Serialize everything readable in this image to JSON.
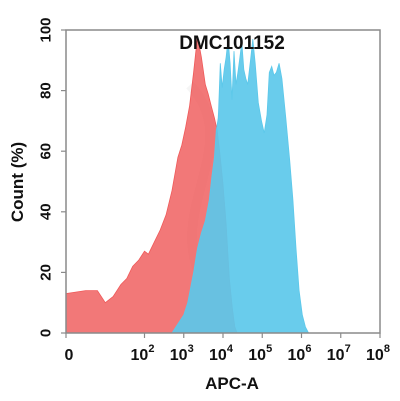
{
  "chart_data": {
    "type": "area",
    "title": "DMC101152",
    "xlabel": "APC-A",
    "ylabel": "Count  (%)",
    "x_scale": "log",
    "xlim_decades": [
      0,
      8
    ],
    "ylim": [
      0,
      100
    ],
    "x_tick_labels": [
      {
        "base": "0",
        "exp": ""
      },
      {
        "base": "10",
        "exp": "2"
      },
      {
        "base": "10",
        "exp": "3"
      },
      {
        "base": "10",
        "exp": "4"
      },
      {
        "base": "10",
        "exp": "5"
      },
      {
        "base": "10",
        "exp": "6"
      },
      {
        "base": "10",
        "exp": "7"
      },
      {
        "base": "10",
        "exp": "8"
      }
    ],
    "x_tick_decades": [
      0,
      2,
      3,
      4,
      5,
      6,
      7,
      8
    ],
    "y_ticks": [
      0,
      20,
      40,
      60,
      80,
      100
    ],
    "grid": false,
    "legend": "none",
    "series": [
      {
        "color": "#ef5a5a",
        "opacity": 0.82,
        "points": [
          [
            0.0,
            13
          ],
          [
            0.5,
            14
          ],
          [
            0.8,
            14
          ],
          [
            1.0,
            10
          ],
          [
            1.2,
            12
          ],
          [
            1.4,
            16
          ],
          [
            1.55,
            18
          ],
          [
            1.7,
            22
          ],
          [
            1.85,
            24
          ],
          [
            2.0,
            27
          ],
          [
            2.1,
            26
          ],
          [
            2.25,
            30
          ],
          [
            2.4,
            34
          ],
          [
            2.55,
            39
          ],
          [
            2.7,
            47
          ],
          [
            2.85,
            58
          ],
          [
            2.95,
            62
          ],
          [
            3.05,
            68
          ],
          [
            3.15,
            75
          ],
          [
            3.25,
            86
          ],
          [
            3.35,
            98
          ],
          [
            3.45,
            91
          ],
          [
            3.55,
            82
          ],
          [
            3.62,
            79
          ],
          [
            3.7,
            75
          ],
          [
            3.78,
            71
          ],
          [
            3.85,
            67
          ],
          [
            3.92,
            59
          ],
          [
            4.0,
            49
          ],
          [
            4.08,
            36
          ],
          [
            4.16,
            18
          ],
          [
            4.24,
            8
          ],
          [
            4.3,
            2
          ],
          [
            4.36,
            0
          ]
        ]
      },
      {
        "color": "#5cc8ea",
        "opacity": 0.92,
        "points": [
          [
            2.7,
            0
          ],
          [
            2.85,
            3
          ],
          [
            3.0,
            6
          ],
          [
            3.1,
            10
          ],
          [
            3.25,
            20
          ],
          [
            3.35,
            28
          ],
          [
            3.45,
            33
          ],
          [
            3.55,
            37
          ],
          [
            3.65,
            44
          ],
          [
            3.72,
            52
          ],
          [
            3.78,
            58
          ],
          [
            3.83,
            67
          ],
          [
            3.88,
            71
          ],
          [
            3.93,
            89
          ],
          [
            3.98,
            81
          ],
          [
            4.03,
            87
          ],
          [
            4.08,
            91
          ],
          [
            4.13,
            97
          ],
          [
            4.18,
            89
          ],
          [
            4.23,
            77
          ],
          [
            4.28,
            93
          ],
          [
            4.33,
            82
          ],
          [
            4.38,
            86
          ],
          [
            4.43,
            91
          ],
          [
            4.48,
            96
          ],
          [
            4.53,
            87
          ],
          [
            4.58,
            84
          ],
          [
            4.63,
            82
          ],
          [
            4.7,
            90
          ],
          [
            4.76,
            97
          ],
          [
            4.82,
            89
          ],
          [
            4.9,
            76
          ],
          [
            4.98,
            70
          ],
          [
            5.05,
            66
          ],
          [
            5.12,
            72
          ],
          [
            5.18,
            86
          ],
          [
            5.24,
            88
          ],
          [
            5.3,
            85
          ],
          [
            5.36,
            86
          ],
          [
            5.43,
            89
          ],
          [
            5.5,
            84
          ],
          [
            5.6,
            71
          ],
          [
            5.7,
            57
          ],
          [
            5.78,
            44
          ],
          [
            5.86,
            28
          ],
          [
            5.94,
            14
          ],
          [
            6.02,
            6
          ],
          [
            6.1,
            2
          ],
          [
            6.18,
            0
          ]
        ]
      }
    ]
  }
}
